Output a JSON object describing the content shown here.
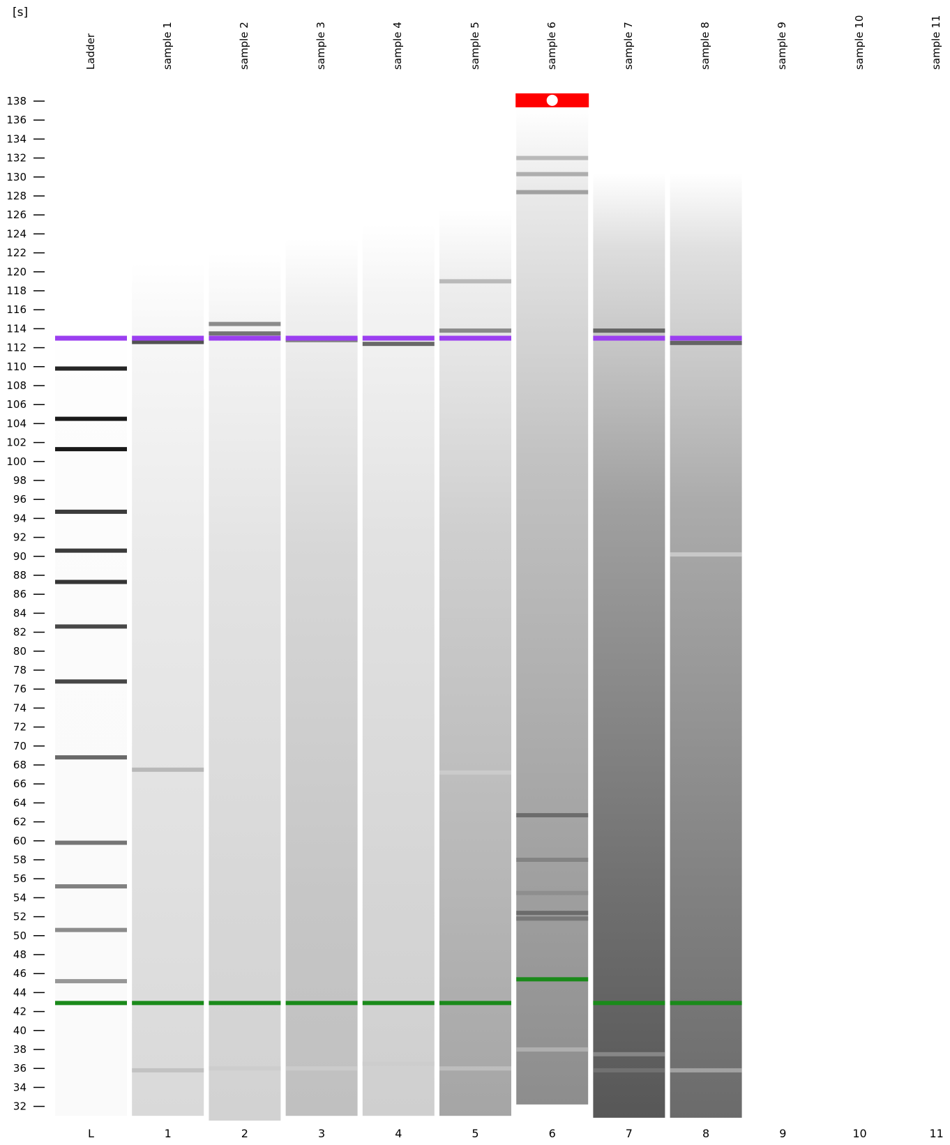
{
  "chart_data": {
    "type": "gel",
    "unit_label": "[s]",
    "y_axis": {
      "min": 31,
      "max": 139,
      "ticks": [
        138,
        136,
        134,
        132,
        130,
        128,
        126,
        124,
        122,
        120,
        118,
        116,
        114,
        112,
        110,
        108,
        106,
        104,
        102,
        100,
        98,
        96,
        94,
        92,
        90,
        88,
        86,
        84,
        82,
        80,
        78,
        76,
        74,
        72,
        70,
        68,
        66,
        64,
        62,
        60,
        58,
        56,
        54,
        52,
        50,
        48,
        46,
        44,
        42,
        40,
        38,
        36,
        34,
        32
      ]
    },
    "lanes": [
      {
        "name": "Ladder",
        "number": "L",
        "range": [
          31,
          114.5
        ],
        "background": 0.02,
        "smear": 0.0,
        "bands": [
          [
            109.8,
            0.95
          ],
          [
            104.5,
            1.0
          ],
          [
            101.3,
            1.0
          ],
          [
            94.7,
            0.85
          ],
          [
            90.6,
            0.85
          ],
          [
            87.3,
            0.88
          ],
          [
            82.6,
            0.8
          ],
          [
            76.8,
            0.8
          ],
          [
            68.8,
            0.65
          ],
          [
            59.8,
            0.6
          ],
          [
            55.2,
            0.55
          ],
          [
            50.6,
            0.5
          ],
          [
            45.2,
            0.45
          ]
        ]
      },
      {
        "name": "sample 1",
        "number": "1",
        "range": [
          31,
          121
        ],
        "background": 0.1,
        "smear": 0.08,
        "bands": [
          [
            112.6,
            0.75
          ],
          [
            67.5,
            0.3
          ],
          [
            35.8,
            0.25
          ]
        ]
      },
      {
        "name": "sample 2",
        "number": "2",
        "range": [
          30.5,
          122
        ],
        "background": 0.14,
        "smear": 0.06,
        "bands": [
          [
            113.5,
            0.6
          ],
          [
            114.5,
            0.5
          ],
          [
            36,
            0.2
          ]
        ]
      },
      {
        "name": "sample 3",
        "number": "3",
        "range": [
          31,
          123.5
        ],
        "background": 0.2,
        "smear": 0.08,
        "bands": [
          [
            112.8,
            0.55
          ],
          [
            36,
            0.2
          ]
        ]
      },
      {
        "name": "sample 4",
        "number": "4",
        "range": [
          31,
          125
        ],
        "background": 0.14,
        "smear": 0.08,
        "bands": [
          [
            112.4,
            0.65
          ],
          [
            36.5,
            0.2
          ]
        ]
      },
      {
        "name": "sample 5",
        "number": "5",
        "range": [
          31,
          126.6
        ],
        "background": 0.22,
        "smear": 0.22,
        "bands": [
          [
            113.8,
            0.5
          ],
          [
            119,
            0.3
          ],
          [
            67.2,
            0.2
          ],
          [
            36,
            0.25
          ]
        ]
      },
      {
        "name": "sample 6",
        "number": "6",
        "range": [
          32.2,
          137.2
        ],
        "background": 0.28,
        "smear": 0.28,
        "bands": [
          [
            128.4,
            0.4
          ],
          [
            130.3,
            0.35
          ],
          [
            132,
            0.3
          ],
          [
            62.7,
            0.6
          ],
          [
            58,
            0.5
          ],
          [
            54.5,
            0.45
          ],
          [
            52.4,
            0.6
          ],
          [
            51.8,
            0.55
          ],
          [
            38,
            0.3
          ]
        ]
      },
      {
        "name": "sample 7",
        "number": "7",
        "range": [
          30.8,
          130.4
        ],
        "background": 0.45,
        "smear": 0.35,
        "bands": [
          [
            113.8,
            0.65
          ],
          [
            35.8,
            0.55
          ],
          [
            37.5,
            0.45
          ]
        ]
      },
      {
        "name": "sample 8",
        "number": "8",
        "range": [
          30.8,
          130.4
        ],
        "background": 0.4,
        "smear": 0.3,
        "bands": [
          [
            112.5,
            0.65
          ],
          [
            90.2,
            0.2
          ],
          [
            35.8,
            0.35
          ]
        ]
      },
      {
        "name": "sample 9",
        "number": "9",
        "range": null,
        "background": 0,
        "smear": 0,
        "bands": []
      },
      {
        "name": "sample 10",
        "number": "10",
        "range": null,
        "background": 0,
        "smear": 0,
        "bands": []
      },
      {
        "name": "sample 11",
        "number": "11",
        "range": null,
        "background": 0,
        "smear": 0,
        "bands": []
      }
    ],
    "upper_marker": {
      "position": 113,
      "color": "#9b3ff0"
    },
    "lower_marker": {
      "position": 42.9,
      "color": "#1a8a1a",
      "lane6_position": 45.4
    },
    "alert": {
      "lane": 6,
      "color": "#ff0000"
    }
  }
}
